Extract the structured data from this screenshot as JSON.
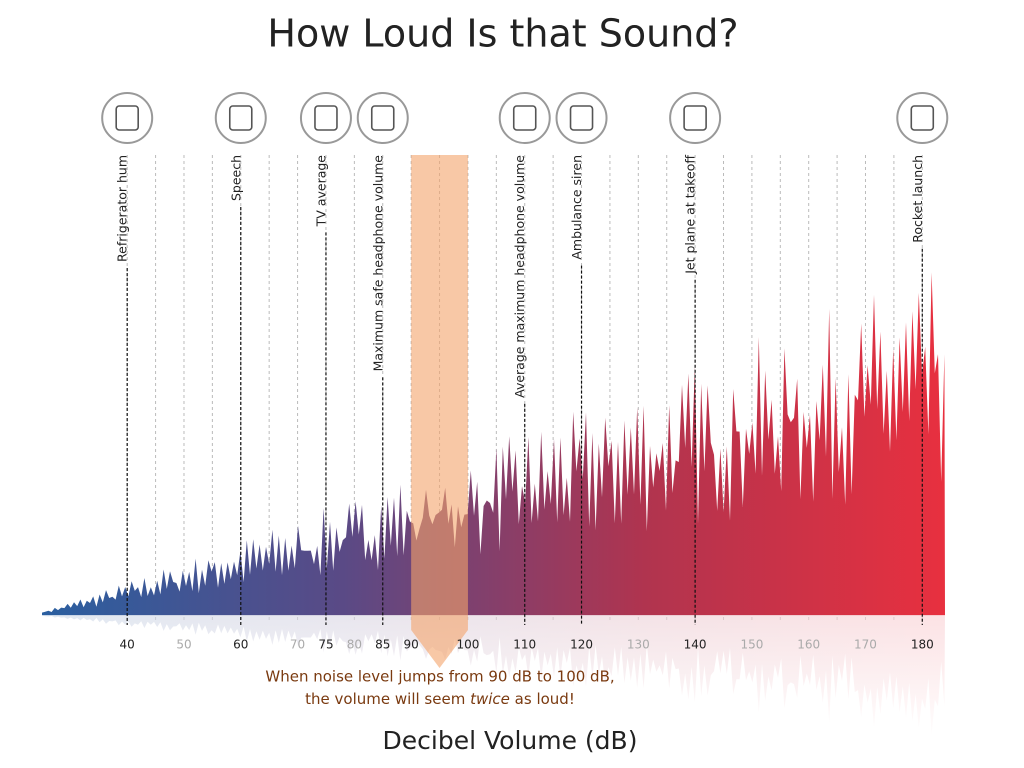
{
  "chart_data": {
    "type": "waveform",
    "title": "How Loud Is that Sound?",
    "x_label": "Decibel Volume (dB)",
    "xlim": [
      25,
      184
    ],
    "xticks": [
      40,
      60,
      75,
      85,
      90,
      100,
      110,
      120,
      140,
      180
    ],
    "xticks_minor": [
      50,
      70,
      80,
      130,
      150,
      160,
      170
    ],
    "unlabeled_gridlines": [
      45,
      55,
      65,
      95,
      105,
      115,
      125,
      135,
      145,
      155,
      165,
      175
    ],
    "grid": true,
    "colors": [
      "#2a5fa0",
      "#5a4a86",
      "#b0344f",
      "#e8303f"
    ],
    "sounds": [
      {
        "name": "Refrigerator hum",
        "value": 40
      },
      {
        "name": "Speech",
        "value": 60
      },
      {
        "name": "TV average",
        "value": 75
      },
      {
        "name": "Maximum safe headphone volume",
        "value": 85
      },
      {
        "name": "Average maximum headphone volume",
        "value": 110
      },
      {
        "name": "Ambulance siren",
        "value": 120
      },
      {
        "name": "Jet plane at takeoff",
        "value": 140
      },
      {
        "name": "Rocket launch",
        "value": 180
      }
    ],
    "highlight": [
      90,
      100
    ],
    "highlight_color": "#f4a46a",
    "annotation": {
      "line1": "When noise level jumps from 90 dB to 100 dB,",
      "line2": [
        "the volume will seem",
        "twice",
        "as loud!"
      ]
    }
  }
}
